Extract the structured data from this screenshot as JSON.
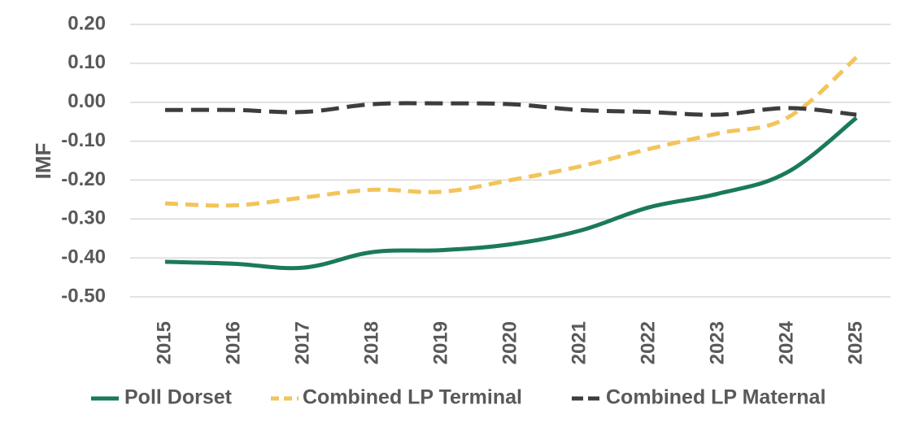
{
  "chart_data": {
    "type": "line",
    "x": [
      "2015",
      "2016",
      "2017",
      "2018",
      "2019",
      "2020",
      "2021",
      "2022",
      "2023",
      "2024",
      "2025"
    ],
    "ylabel": "IMF",
    "ylim": [
      -0.5,
      0.2
    ],
    "yticks": [
      "0.20",
      "0.10",
      "0.00",
      "-0.10",
      "-0.20",
      "-0.30",
      "-0.40",
      "-0.50"
    ],
    "ytick_values": [
      0.2,
      0.1,
      0.0,
      -0.1,
      -0.2,
      -0.3,
      -0.4,
      -0.5
    ],
    "grid": true,
    "legend_position": "bottom",
    "series": [
      {
        "name": "Poll Dorset",
        "color": "#1a7a5a",
        "dash": "solid",
        "values": [
          -0.41,
          -0.415,
          -0.425,
          -0.385,
          -0.38,
          -0.365,
          -0.33,
          -0.27,
          -0.235,
          -0.18,
          -0.04
        ]
      },
      {
        "name": "Combined LP Terminal",
        "color": "#f2c45a",
        "dash": "dashed",
        "values": [
          -0.26,
          -0.265,
          -0.245,
          -0.225,
          -0.23,
          -0.2,
          -0.165,
          -0.12,
          -0.08,
          -0.04,
          0.115
        ]
      },
      {
        "name": "Combined LP Maternal",
        "color": "#3d3d3d",
        "dash": "dashed",
        "values": [
          -0.02,
          -0.02,
          -0.025,
          -0.005,
          -0.003,
          -0.005,
          -0.02,
          -0.025,
          -0.032,
          -0.015,
          -0.032
        ]
      }
    ]
  }
}
